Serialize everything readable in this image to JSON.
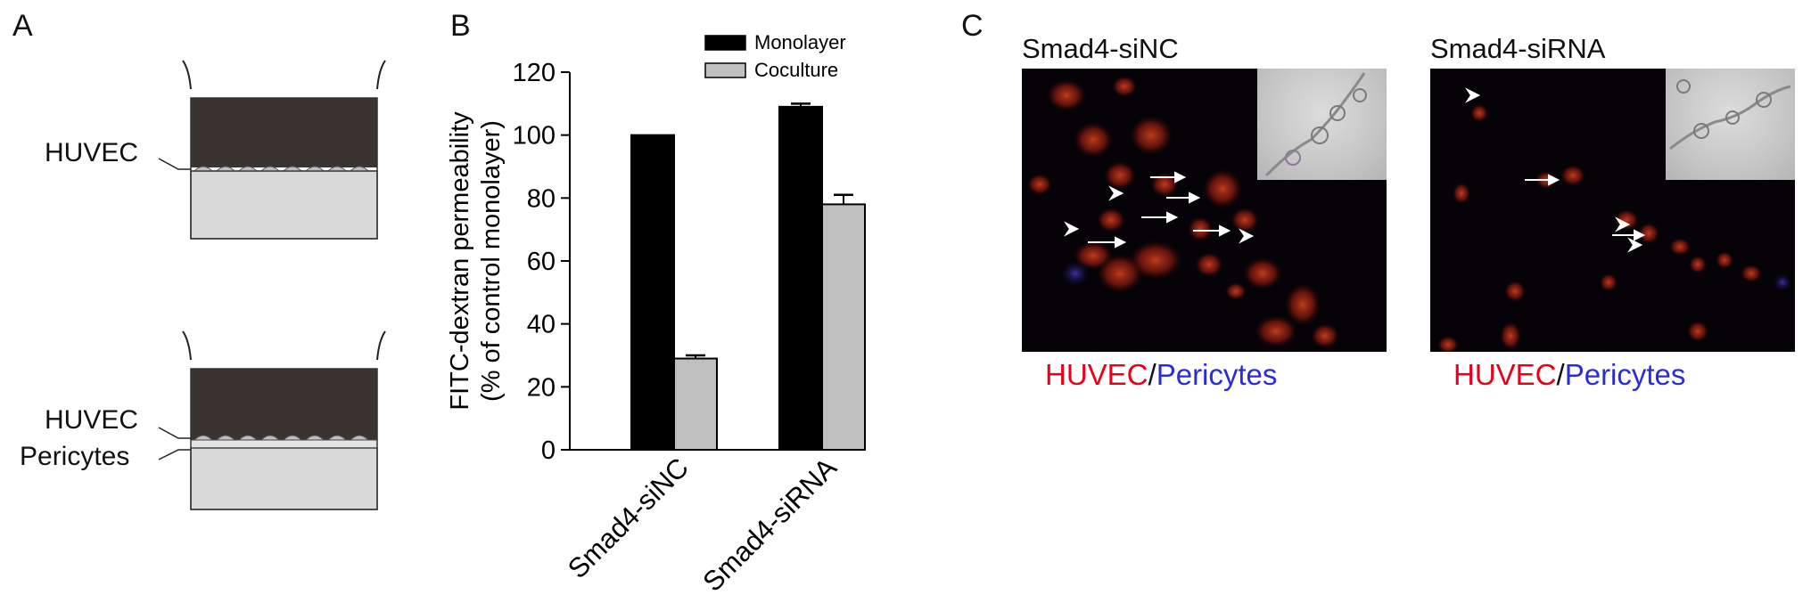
{
  "panels": {
    "a": {
      "letter": "A",
      "top_label": "HUVEC",
      "bottom_labels": [
        "HUVEC",
        "Pericytes"
      ]
    },
    "b": {
      "letter": "B"
    },
    "c": {
      "letter": "C",
      "images": [
        {
          "title": "Smad4-siNC"
        },
        {
          "title": "Smad4-siRNA"
        }
      ],
      "stain_red": "HUVEC",
      "stain_sep": "/",
      "stain_blue": "Pericytes",
      "colors": {
        "red": "#e8001c",
        "blue": "#2b2bd8"
      }
    }
  },
  "chart_data": {
    "type": "bar",
    "categories": [
      "Smad4-siNC",
      "Smad4-siRNA"
    ],
    "series": [
      {
        "name": "Monolayer",
        "values": [
          100,
          109
        ],
        "errors": [
          0,
          1
        ],
        "color": "#000000"
      },
      {
        "name": "Coculture",
        "values": [
          29,
          78
        ],
        "errors": [
          1,
          3
        ],
        "color": "#c0c0c0"
      }
    ],
    "ylabel_line1": "FITC-dextran permeability",
    "ylabel_line2": "(% of  control monolayer)",
    "ylim": [
      0,
      120
    ],
    "yticks": [
      0,
      20,
      40,
      60,
      80,
      100,
      120
    ],
    "legend_position": "top-right",
    "grid": false
  }
}
